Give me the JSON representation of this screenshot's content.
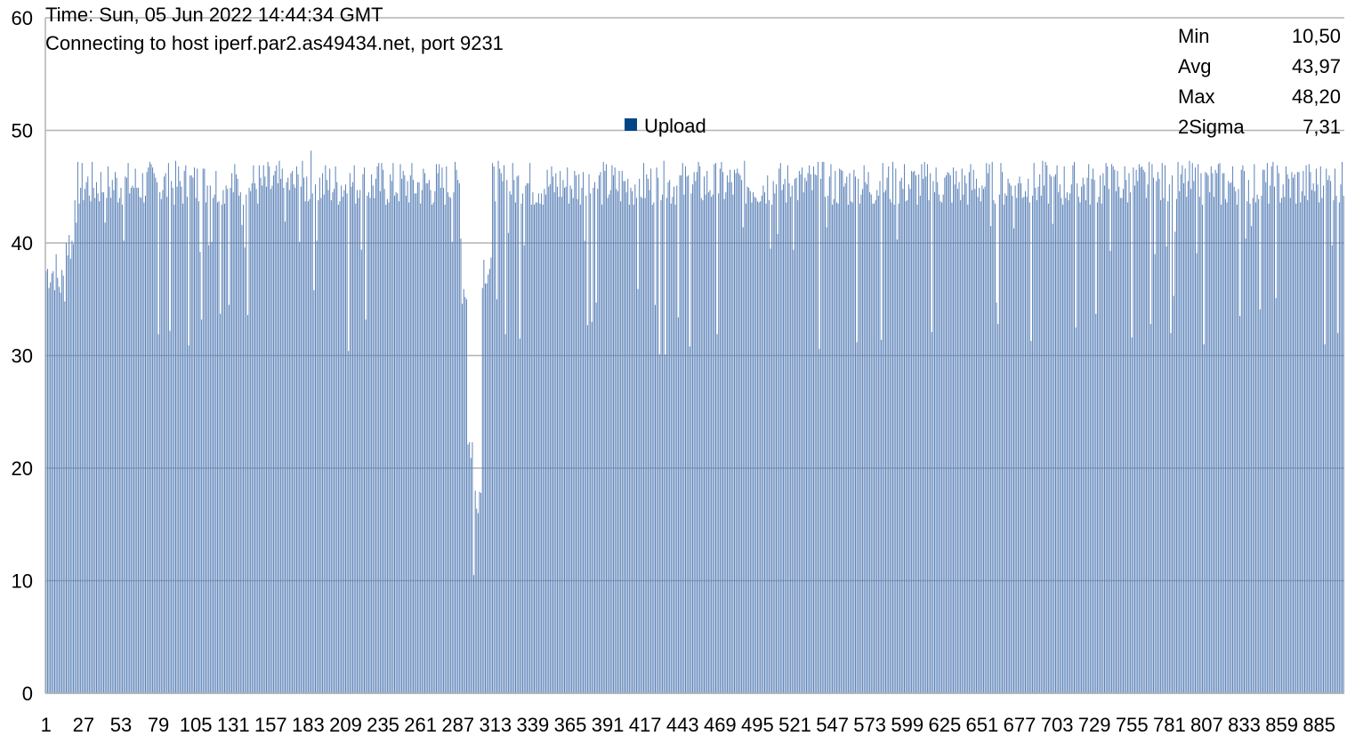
{
  "chart_data": {
    "type": "bar",
    "title_lines": [
      "Time: Sun, 05 Jun 2022 14:44:34 GMT",
      "Connecting to host iperf.par2.as49434.net, port 9231"
    ],
    "series": [
      {
        "name": "Upload",
        "color": "#004586"
      }
    ],
    "stats": [
      {
        "label": "Min",
        "value": "10,50"
      },
      {
        "label": "Avg",
        "value": "43,97"
      },
      {
        "label": "Max",
        "value": "48,20"
      },
      {
        "label": "2Sigma",
        "value": "7,31"
      }
    ],
    "ylim": [
      0,
      60
    ],
    "yticks": [
      0,
      10,
      20,
      30,
      40,
      50,
      60
    ],
    "x_count": 902,
    "xtick_labels": [
      "1",
      "27",
      "53",
      "79",
      "105",
      "131",
      "157",
      "183",
      "209",
      "235",
      "261",
      "287",
      "313",
      "339",
      "365",
      "391",
      "417",
      "443",
      "469",
      "495",
      "521",
      "547",
      "573",
      "599",
      "625",
      "651",
      "677",
      "703",
      "729",
      "755",
      "781",
      "807",
      "833",
      "859",
      "885"
    ],
    "grid": true,
    "legend_position": "top-center",
    "values_pattern_note_free": true,
    "sample_profile": [
      {
        "from": 1,
        "to": 8,
        "level": 37.5
      },
      {
        "from": 9,
        "to": 14,
        "level": 36.5
      },
      {
        "from": 15,
        "to": 20,
        "level": 40
      },
      {
        "from": 21,
        "to": 289,
        "level": 45
      },
      {
        "from": 290,
        "to": 293,
        "level": 36
      },
      {
        "from": 294,
        "to": 297,
        "level": 22
      },
      {
        "from": 298,
        "to": 298,
        "level": 10.5
      },
      {
        "from": 299,
        "to": 303,
        "level": 18
      },
      {
        "from": 304,
        "to": 310,
        "level": 38
      },
      {
        "from": 311,
        "to": 902,
        "level": 45
      }
    ]
  }
}
